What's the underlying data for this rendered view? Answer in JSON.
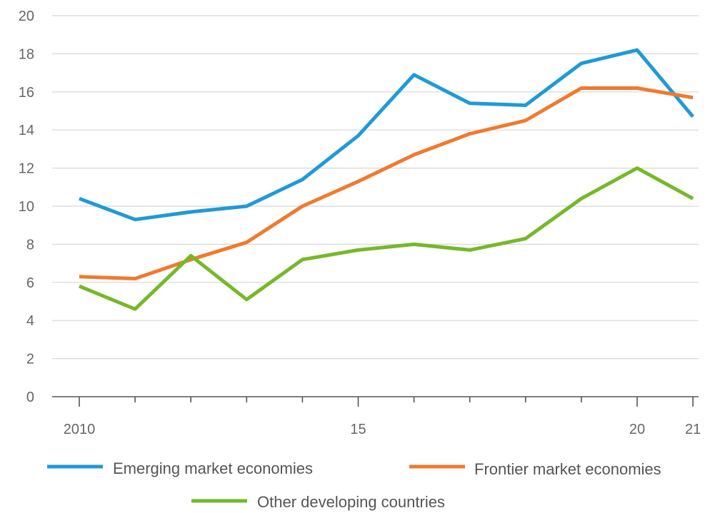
{
  "chart_data": {
    "type": "line",
    "title": "",
    "xlabel": "",
    "ylabel": "",
    "x": [
      2010,
      2011,
      2012,
      2013,
      2014,
      2015,
      2016,
      2017,
      2018,
      2019,
      2020,
      2021
    ],
    "xlim": [
      2009.5,
      2021.2
    ],
    "ylim": [
      0,
      20
    ],
    "yticks": [
      0,
      2,
      4,
      6,
      8,
      10,
      12,
      14,
      16,
      18,
      20
    ],
    "xtick_labels": [
      {
        "x": 2010,
        "label": "2010"
      },
      {
        "x": 2015,
        "label": "15"
      },
      {
        "x": 2020,
        "label": "20"
      },
      {
        "x": 2021,
        "label": "21"
      }
    ],
    "grid": true,
    "legend_position": "bottom",
    "series": [
      {
        "name": "Emerging market economies",
        "color": "#1f9ad6",
        "values": [
          10.4,
          9.3,
          9.7,
          10.0,
          11.4,
          13.7,
          16.9,
          15.4,
          15.3,
          17.5,
          18.2,
          14.7
        ]
      },
      {
        "name": "Frontier market economies",
        "color": "#f07a2e",
        "values": [
          6.3,
          6.2,
          7.2,
          8.1,
          10.0,
          11.3,
          12.7,
          13.8,
          14.5,
          16.2,
          16.2,
          15.7
        ]
      },
      {
        "name": "Other developing countries",
        "color": "#76b82a",
        "values": [
          5.8,
          4.6,
          7.4,
          5.1,
          7.2,
          7.7,
          8.0,
          7.7,
          8.3,
          10.4,
          12.0,
          10.4
        ]
      }
    ]
  }
}
